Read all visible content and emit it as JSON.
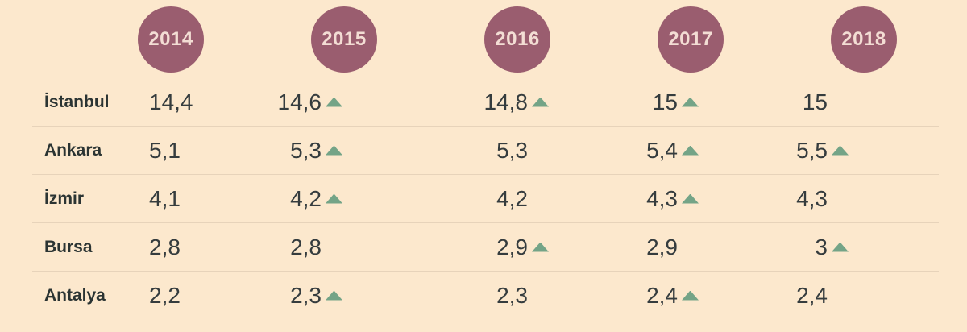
{
  "colors": {
    "background": "#fce8cd",
    "year_circle": "#9a5d6f",
    "year_circle_text": "#f3ddd4",
    "city_label": "#2b3433",
    "value_text": "#353c3e",
    "up_arrow": "#74a487",
    "divider": "#e7d3ba"
  },
  "icons": {
    "up_arrow": "triangle-up-icon"
  },
  "table": {
    "years": [
      "2014",
      "2015",
      "2016",
      "2017",
      "2018"
    ],
    "rows": [
      {
        "city": "İstanbul",
        "cells": [
          {
            "value": "14,4",
            "up": false
          },
          {
            "value": "14,6",
            "up": true
          },
          {
            "value": "14,8",
            "up": true
          },
          {
            "value": "15",
            "up": true
          },
          {
            "value": "15",
            "up": false
          }
        ]
      },
      {
        "city": "Ankara",
        "cells": [
          {
            "value": "5,1",
            "up": false
          },
          {
            "value": "5,3",
            "up": true
          },
          {
            "value": "5,3",
            "up": false
          },
          {
            "value": "5,4",
            "up": true
          },
          {
            "value": "5,5",
            "up": true
          }
        ]
      },
      {
        "city": "İzmir",
        "cells": [
          {
            "value": "4,1",
            "up": false
          },
          {
            "value": "4,2",
            "up": true
          },
          {
            "value": "4,2",
            "up": false
          },
          {
            "value": "4,3",
            "up": true
          },
          {
            "value": "4,3",
            "up": false
          }
        ]
      },
      {
        "city": "Bursa",
        "cells": [
          {
            "value": "2,8",
            "up": false
          },
          {
            "value": "2,8",
            "up": false
          },
          {
            "value": "2,9",
            "up": true
          },
          {
            "value": "2,9",
            "up": false
          },
          {
            "value": "3",
            "up": true
          }
        ]
      },
      {
        "city": "Antalya",
        "cells": [
          {
            "value": "2,2",
            "up": false
          },
          {
            "value": "2,3",
            "up": true
          },
          {
            "value": "2,3",
            "up": false
          },
          {
            "value": "2,4",
            "up": true
          },
          {
            "value": "2,4",
            "up": false
          }
        ]
      }
    ]
  },
  "chart_data": {
    "type": "table",
    "title": "",
    "categories": [
      "2014",
      "2015",
      "2016",
      "2017",
      "2018"
    ],
    "series": [
      {
        "name": "İstanbul",
        "values": [
          14.4,
          14.6,
          14.8,
          15,
          15
        ],
        "increase_marked": [
          false,
          true,
          true,
          true,
          false
        ]
      },
      {
        "name": "Ankara",
        "values": [
          5.1,
          5.3,
          5.3,
          5.4,
          5.5
        ],
        "increase_marked": [
          false,
          true,
          false,
          true,
          true
        ]
      },
      {
        "name": "İzmir",
        "values": [
          4.1,
          4.2,
          4.2,
          4.3,
          4.3
        ],
        "increase_marked": [
          false,
          true,
          false,
          true,
          false
        ]
      },
      {
        "name": "Bursa",
        "values": [
          2.8,
          2.8,
          2.9,
          2.9,
          3
        ],
        "increase_marked": [
          false,
          false,
          true,
          false,
          true
        ]
      },
      {
        "name": "Antalya",
        "values": [
          2.2,
          2.3,
          2.3,
          2.4,
          2.4
        ],
        "increase_marked": [
          false,
          true,
          false,
          true,
          false
        ]
      }
    ],
    "legend": "none",
    "grid": "horizontal-row-dividers",
    "notes": "Values use Turkish comma decimal format; green up-triangle marks year-over-year increase"
  }
}
